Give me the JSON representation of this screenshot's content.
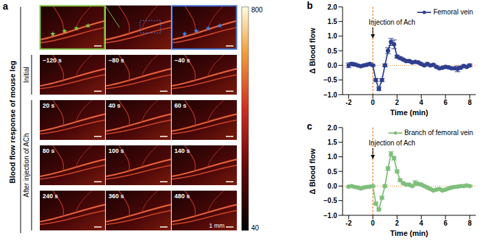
{
  "panel_a": {
    "label": "a",
    "side_label": "Blood flow response of mouse leg",
    "zoom_row": true,
    "groups": [
      {
        "label": "Initial",
        "rows": [
          [
            "−120 s",
            "−80 s",
            "−40 s"
          ]
        ]
      },
      {
        "label": "After injection of ACh",
        "rows": [
          [
            "20 s",
            "40 s",
            "60 s"
          ],
          [
            "80 s",
            "100 s",
            "140 s"
          ],
          [
            "240 s",
            "360 s",
            "480 s"
          ]
        ]
      }
    ],
    "scale_bar": "1 mm",
    "colorbar": {
      "range": [
        40,
        800
      ],
      "ticks": [
        40,
        800
      ]
    }
  },
  "chart_data": [
    {
      "label": "b",
      "type": "line",
      "x_label": "Time (min)",
      "y_label": "Δ Blood flow",
      "annotation": {
        "text": "Injection of Ach",
        "x": 0
      },
      "hline": 0,
      "xlim": [
        -2.5,
        8.5
      ],
      "xticks": [
        -2,
        0,
        2,
        4,
        6,
        8
      ],
      "ylim": [
        -1,
        2
      ],
      "yticks": [
        {
          "value": -1,
          "label": "−1.0"
        },
        {
          "value": -0.5,
          "label": "−0.5"
        },
        {
          "value": 0,
          "label": "0.0"
        },
        {
          "value": 0.5,
          "label": "0.5"
        },
        {
          "value": 1,
          "label": "1.0"
        },
        {
          "value": 1.5,
          "label": "1.5"
        },
        {
          "value": 2,
          "label": "2.0"
        }
      ],
      "legend": "upper right",
      "x": [
        -2,
        -1.75,
        -1.5,
        -1.25,
        -1,
        -0.75,
        -0.5,
        -0.25,
        0,
        0.25,
        0.5,
        0.75,
        1,
        1.25,
        1.5,
        1.75,
        2,
        2.25,
        2.5,
        2.75,
        3,
        3.25,
        3.5,
        3.75,
        4,
        4.25,
        4.5,
        4.75,
        5,
        5.25,
        5.5,
        5.75,
        6,
        6.25,
        6.5,
        6.75,
        7,
        7.25,
        7.5,
        7.75,
        8
      ],
      "series": [
        {
          "name": "Femoral vein",
          "color": "#2e3f8f",
          "marker": "circle",
          "values": [
            0.0,
            0.05,
            0.03,
            0.0,
            -0.03,
            0.0,
            0.02,
            0.05,
            0.0,
            -0.5,
            -0.8,
            -0.5,
            0.0,
            0.5,
            0.8,
            0.72,
            0.3,
            0.25,
            0.2,
            0.15,
            0.15,
            0.1,
            0.12,
            0.1,
            0.05,
            0.0,
            0.05,
            0.0,
            0.02,
            -0.05,
            -0.1,
            -0.08,
            -0.05,
            -0.07,
            -0.1,
            -0.1,
            -0.12,
            -0.08,
            -0.02,
            -0.05,
            0.0
          ],
          "errors": [
            0.08,
            0.05,
            0.05,
            0.03,
            0.03,
            0.03,
            0.03,
            0.03,
            0.03,
            0.05,
            0.06,
            0.05,
            0.05,
            0.1,
            0.12,
            0.15,
            0.05,
            0.04,
            0.03,
            0.03,
            0.03,
            0.03,
            0.03,
            0.03,
            0.03,
            0.03,
            0.03,
            0.03,
            0.03,
            0.03,
            0.03,
            0.03,
            0.03,
            0.03,
            0.03,
            0.03,
            0.1,
            0.03,
            0.03,
            0.03,
            0.05
          ]
        }
      ]
    },
    {
      "label": "c",
      "type": "line",
      "x_label": "Time (min)",
      "y_label": "Δ Blood flow",
      "annotation": {
        "text": "Injection of Ach",
        "x": 0
      },
      "hline": 0,
      "xlim": [
        -2.5,
        8.5
      ],
      "xticks": [
        -2,
        0,
        2,
        4,
        6,
        8
      ],
      "ylim": [
        -1,
        2
      ],
      "yticks": [
        {
          "value": -1,
          "label": "−1.0"
        },
        {
          "value": -0.5,
          "label": "−0.5"
        },
        {
          "value": 0,
          "label": "0.0"
        },
        {
          "value": 0.5,
          "label": "0.5"
        },
        {
          "value": 1,
          "label": "1.0"
        },
        {
          "value": 1.5,
          "label": "1.5"
        },
        {
          "value": 2,
          "label": "2.0"
        }
      ],
      "legend": "upper right",
      "x": [
        -2,
        -1.75,
        -1.5,
        -1.25,
        -1,
        -0.75,
        -0.5,
        -0.25,
        0,
        0.25,
        0.5,
        0.75,
        1,
        1.25,
        1.5,
        1.75,
        2,
        2.25,
        2.5,
        2.75,
        3,
        3.25,
        3.5,
        3.75,
        4,
        4.25,
        4.5,
        4.75,
        5,
        5.25,
        5.5,
        5.75,
        6,
        6.25,
        6.5,
        6.75,
        7,
        7.25,
        7.5,
        7.75,
        8
      ],
      "series": [
        {
          "name": "Branch of femoral vein",
          "color": "#7fbf7b",
          "marker": "circle",
          "values": [
            -0.02,
            0.0,
            -0.03,
            -0.05,
            -0.08,
            -0.05,
            -0.03,
            -0.02,
            0.0,
            -0.6,
            -0.8,
            -0.4,
            0.0,
            0.6,
            1.1,
            0.95,
            0.5,
            0.2,
            0.1,
            0.05,
            0.05,
            0.0,
            0.1,
            0.08,
            0.05,
            0.0,
            -0.05,
            -0.1,
            -0.15,
            -0.12,
            -0.1,
            -0.15,
            -0.12,
            -0.08,
            -0.05,
            -0.03,
            -0.02,
            0.0,
            0.0,
            0.02,
            0.0
          ],
          "errors": [
            0.03,
            0.03,
            0.03,
            0.03,
            0.03,
            0.03,
            0.03,
            0.03,
            0.03,
            0.05,
            0.05,
            0.05,
            0.05,
            0.06,
            0.08,
            0.06,
            0.05,
            0.04,
            0.03,
            0.03,
            0.03,
            0.03,
            0.08,
            0.03,
            0.03,
            0.03,
            0.03,
            0.03,
            0.03,
            0.03,
            0.03,
            0.03,
            0.03,
            0.03,
            0.03,
            0.03,
            0.03,
            0.03,
            0.03,
            0.03,
            0.03
          ]
        }
      ]
    }
  ]
}
